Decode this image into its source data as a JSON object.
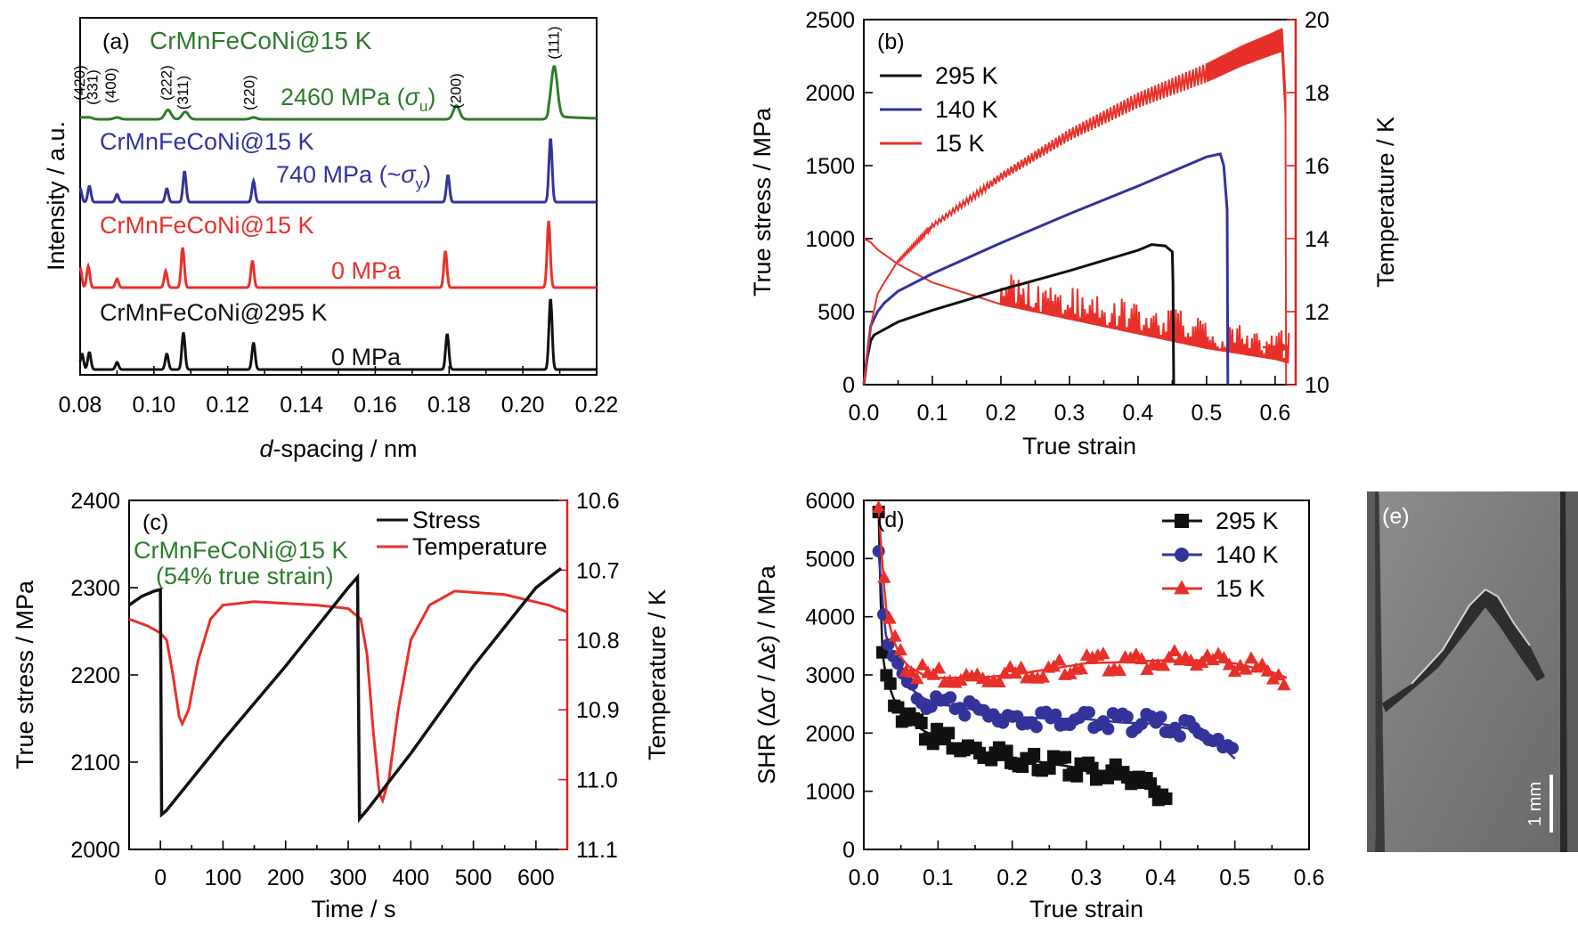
{
  "colors": {
    "black": "#111111",
    "blue": "#33339a",
    "red": "#e8302a",
    "green": "#2e7b2e",
    "right_axis": "#e02020"
  },
  "chart_data": [
    {
      "id": "a",
      "type": "line",
      "panel_label": "(a)",
      "xlabel_italic": "d",
      "xlabel_rest": "-spacing / nm",
      "ylabel": "Intensity / a.u.",
      "xlim": [
        0.08,
        0.22
      ],
      "xticks": [
        "0.08",
        "0.10",
        "0.12",
        "0.14",
        "0.16",
        "0.18",
        "0.20",
        "0.22"
      ],
      "series": [
        {
          "name": "CrMnFeCoNi@295 K",
          "stress_label": "0 MPa",
          "color": "black",
          "peaks": [
            [
              0.0805,
              0.22
            ],
            [
              0.0825,
              0.24
            ],
            [
              0.09,
              0.1
            ],
            [
              0.1035,
              0.22
            ],
            [
              0.108,
              0.52
            ],
            [
              0.127,
              0.38
            ],
            [
              0.1795,
              0.5
            ],
            [
              0.2075,
              1.0
            ]
          ]
        },
        {
          "name": "CrMnFeCoNi@15 K",
          "stress_label": "0 MPa",
          "color": "red",
          "peaks": [
            [
              0.08,
              0.3
            ],
            [
              0.0822,
              0.32
            ],
            [
              0.09,
              0.13
            ],
            [
              0.1032,
              0.25
            ],
            [
              0.1078,
              0.6
            ],
            [
              0.1267,
              0.4
            ],
            [
              0.179,
              0.55
            ],
            [
              0.207,
              1.0
            ]
          ]
        },
        {
          "name": "CrMnFeCoNi@15 K",
          "stress_label_prefix": "740 MPa (~",
          "stress_label_sub": "y",
          "stress_label_suffix": ")",
          "color": "blue",
          "peaks": [
            [
              0.08,
              0.22
            ],
            [
              0.0825,
              0.25
            ],
            [
              0.09,
              0.12
            ],
            [
              0.1035,
              0.21
            ],
            [
              0.1083,
              0.48
            ],
            [
              0.127,
              0.33
            ],
            [
              0.1797,
              0.42
            ],
            [
              0.2075,
              1.0
            ]
          ]
        },
        {
          "name": "CrMnFeCoNi@15 K",
          "stress_label_prefix": "2460 MPa (",
          "stress_label_sub": "u",
          "stress_label_suffix": ")",
          "color": "green",
          "peaks": [
            [
              0.0805,
              0.03
            ],
            [
              0.0825,
              0.03
            ],
            [
              0.09,
              0.03
            ],
            [
              0.1038,
              0.15
            ],
            [
              0.1085,
              0.12
            ],
            [
              0.127,
              0.03
            ],
            [
              0.182,
              0.22
            ],
            [
              0.2085,
              0.8
            ]
          ]
        }
      ],
      "peak_labels": [
        {
          "hkl": "(420)",
          "x": 0.08
        },
        {
          "hkl": "(331)",
          "x": 0.0835
        },
        {
          "hkl": "(400)",
          "x": 0.0885
        },
        {
          "hkl": "(222)",
          "x": 0.1035
        },
        {
          "hkl": "(311)",
          "x": 0.108
        },
        {
          "hkl": "(220)",
          "x": 0.126
        },
        {
          "hkl": "(200)",
          "x": 0.182
        },
        {
          "hkl": "(111)",
          "x": 0.2085
        }
      ]
    },
    {
      "id": "b",
      "type": "line",
      "panel_label": "(b)",
      "xlabel": "True strain",
      "ylabel": "True stress / MPa",
      "y2label": "Temperature / K",
      "xlim": [
        0,
        0.63
      ],
      "ylim": [
        0,
        2500
      ],
      "y2lim": [
        10,
        20
      ],
      "xticks": [
        "0.0",
        "0.1",
        "0.2",
        "0.3",
        "0.4",
        "0.5",
        "0.6"
      ],
      "yticks": [
        "0",
        "500",
        "1000",
        "1500",
        "2000",
        "2500"
      ],
      "y2ticks": [
        "10",
        "12",
        "14",
        "16",
        "18",
        "20"
      ],
      "series": [
        {
          "name": "295 K",
          "color": "black",
          "points": [
            [
              0,
              0
            ],
            [
              0.005,
              180
            ],
            [
              0.01,
              300
            ],
            [
              0.015,
              340
            ],
            [
              0.05,
              430
            ],
            [
              0.1,
              510
            ],
            [
              0.2,
              650
            ],
            [
              0.3,
              780
            ],
            [
              0.35,
              850
            ],
            [
              0.4,
              920
            ],
            [
              0.42,
              960
            ],
            [
              0.44,
              950
            ],
            [
              0.45,
              910
            ],
            [
              0.451,
              700
            ],
            [
              0.452,
              0
            ]
          ]
        },
        {
          "name": "140 K",
          "color": "blue",
          "points": [
            [
              0,
              0
            ],
            [
              0.005,
              200
            ],
            [
              0.01,
              400
            ],
            [
              0.02,
              500
            ],
            [
              0.03,
              560
            ],
            [
              0.05,
              640
            ],
            [
              0.1,
              760
            ],
            [
              0.2,
              970
            ],
            [
              0.3,
              1170
            ],
            [
              0.4,
              1360
            ],
            [
              0.5,
              1560
            ],
            [
              0.52,
              1580
            ],
            [
              0.525,
              1500
            ],
            [
              0.53,
              1200
            ],
            [
              0.531,
              0
            ]
          ]
        },
        {
          "name": "15 K",
          "color": "red",
          "points": [
            [
              0,
              0
            ],
            [
              0.01,
              400
            ],
            [
              0.02,
              620
            ],
            [
              0.03,
              700
            ],
            [
              0.05,
              850
            ],
            [
              0.1,
              1100
            ],
            [
              0.2,
              1450
            ],
            [
              0.3,
              1750
            ],
            [
              0.4,
              2000
            ],
            [
              0.5,
              2200
            ],
            [
              0.55,
              2320
            ],
            [
              0.6,
              2420
            ],
            [
              0.61,
              2440
            ],
            [
              0.615,
              2000
            ],
            [
              0.616,
              0
            ]
          ]
        }
      ],
      "temperature_curve": [
        [
          0,
          14.0
        ],
        [
          0.01,
          13.9
        ],
        [
          0.02,
          13.7
        ],
        [
          0.05,
          13.3
        ],
        [
          0.1,
          12.8
        ],
        [
          0.2,
          12.2
        ],
        [
          0.3,
          11.8
        ],
        [
          0.4,
          11.4
        ],
        [
          0.5,
          11.0
        ],
        [
          0.55,
          10.85
        ],
        [
          0.6,
          10.7
        ],
        [
          0.62,
          10.6
        ]
      ],
      "right_axis_arrow": true
    },
    {
      "id": "c",
      "type": "line",
      "panel_label": "(c)",
      "annotation_line1": "CrMnFeCoNi@15 K",
      "annotation_line2": "(54% true strain)",
      "xlabel": "Time / s",
      "ylabel": "True stress / MPa",
      "y2label": "Temperature / K",
      "xlim": [
        -50,
        650
      ],
      "ylim": [
        2000,
        2400
      ],
      "y2lim": [
        10.6,
        11.1
      ],
      "y2_inverted": true,
      "xticks": [
        "0",
        "100",
        "200",
        "300",
        "400",
        "500",
        "600"
      ],
      "yticks": [
        "2000",
        "2100",
        "2200",
        "2300",
        "2400"
      ],
      "y2ticks": [
        "10.6",
        "10.7",
        "10.8",
        "10.9",
        "11.0",
        "11.1"
      ],
      "series": [
        {
          "name": "Stress",
          "color": "black",
          "points": [
            [
              -50,
              2280
            ],
            [
              -30,
              2290
            ],
            [
              -10,
              2296
            ],
            [
              0,
              2298
            ],
            [
              2,
              2040
            ],
            [
              10,
              2045
            ],
            [
              100,
              2125
            ],
            [
              200,
              2210
            ],
            [
              300,
              2300
            ],
            [
              315,
              2312
            ],
            [
              318,
              2035
            ],
            [
              330,
              2045
            ],
            [
              400,
              2110
            ],
            [
              500,
              2210
            ],
            [
              600,
              2300
            ],
            [
              640,
              2322
            ]
          ]
        },
        {
          "name": "Temperature",
          "color": "red",
          "points": [
            [
              -50,
              10.77
            ],
            [
              -20,
              10.78
            ],
            [
              0,
              10.79
            ],
            [
              10,
              10.8
            ],
            [
              20,
              10.85
            ],
            [
              30,
              10.91
            ],
            [
              35,
              10.92
            ],
            [
              45,
              10.9
            ],
            [
              60,
              10.83
            ],
            [
              80,
              10.77
            ],
            [
              100,
              10.75
            ],
            [
              150,
              10.745
            ],
            [
              250,
              10.75
            ],
            [
              300,
              10.755
            ],
            [
              320,
              10.77
            ],
            [
              330,
              10.82
            ],
            [
              340,
              10.93
            ],
            [
              350,
              11.02
            ],
            [
              355,
              11.03
            ],
            [
              365,
              11.0
            ],
            [
              380,
              10.9
            ],
            [
              400,
              10.8
            ],
            [
              430,
              10.75
            ],
            [
              470,
              10.73
            ],
            [
              550,
              10.735
            ],
            [
              620,
              10.75
            ],
            [
              650,
              10.76
            ]
          ]
        }
      ]
    },
    {
      "id": "d",
      "type": "scatter",
      "panel_label": "(d)",
      "xlabel": "True strain",
      "ylabel_pre": "SHR (Δ",
      "ylabel_sigma": "σ",
      "ylabel_mid": " / Δ",
      "ylabel_eps": "ε",
      "ylabel_post": ") / MPa",
      "xlim": [
        0,
        0.6
      ],
      "ylim": [
        0,
        6000
      ],
      "xticks": [
        "0.0",
        "0.1",
        "0.2",
        "0.3",
        "0.4",
        "0.5",
        "0.6"
      ],
      "yticks": [
        "0",
        "1000",
        "2000",
        "3000",
        "4000",
        "5000",
        "6000"
      ],
      "series": [
        {
          "name": "295 K",
          "color": "black",
          "marker": "square",
          "x_end": 0.41,
          "points": [
            [
              0.02,
              5800
            ],
            [
              0.022,
              4600
            ],
            [
              0.025,
              3400
            ],
            [
              0.03,
              2950
            ],
            [
              0.04,
              2600
            ],
            [
              0.05,
              2350
            ],
            [
              0.06,
              2200
            ],
            [
              0.08,
              2050
            ],
            [
              0.1,
              1900
            ],
            [
              0.15,
              1700
            ],
            [
              0.2,
              1580
            ],
            [
              0.25,
              1480
            ],
            [
              0.3,
              1380
            ],
            [
              0.35,
              1280
            ],
            [
              0.38,
              1100
            ],
            [
              0.41,
              920
            ]
          ]
        },
        {
          "name": "140 K",
          "color": "blue",
          "marker": "circle",
          "x_end": 0.5,
          "points": [
            [
              0.02,
              5100
            ],
            [
              0.025,
              4300
            ],
            [
              0.03,
              3650
            ],
            [
              0.04,
              3300
            ],
            [
              0.05,
              3000
            ],
            [
              0.06,
              2800
            ],
            [
              0.08,
              2600
            ],
            [
              0.1,
              2500
            ],
            [
              0.15,
              2400
            ],
            [
              0.2,
              2280
            ],
            [
              0.25,
              2250
            ],
            [
              0.3,
              2240
            ],
            [
              0.35,
              2180
            ],
            [
              0.4,
              2160
            ],
            [
              0.45,
              2050
            ],
            [
              0.48,
              1800
            ],
            [
              0.5,
              1560
            ]
          ]
        },
        {
          "name": "15 K",
          "color": "red",
          "marker": "triangle",
          "x_end": 0.57,
          "points": [
            [
              0.02,
              5900
            ],
            [
              0.025,
              4900
            ],
            [
              0.03,
              4100
            ],
            [
              0.04,
              3600
            ],
            [
              0.05,
              3300
            ],
            [
              0.06,
              3150
            ],
            [
              0.08,
              3000
            ],
            [
              0.1,
              2950
            ],
            [
              0.15,
              2950
            ],
            [
              0.2,
              3000
            ],
            [
              0.25,
              3100
            ],
            [
              0.3,
              3200
            ],
            [
              0.35,
              3220
            ],
            [
              0.4,
              3250
            ],
            [
              0.45,
              3250
            ],
            [
              0.5,
              3200
            ],
            [
              0.55,
              3050
            ],
            [
              0.57,
              2950
            ]
          ]
        }
      ]
    }
  ],
  "panel_e": {
    "label": "(e)",
    "scale_bar": "1 mm"
  }
}
